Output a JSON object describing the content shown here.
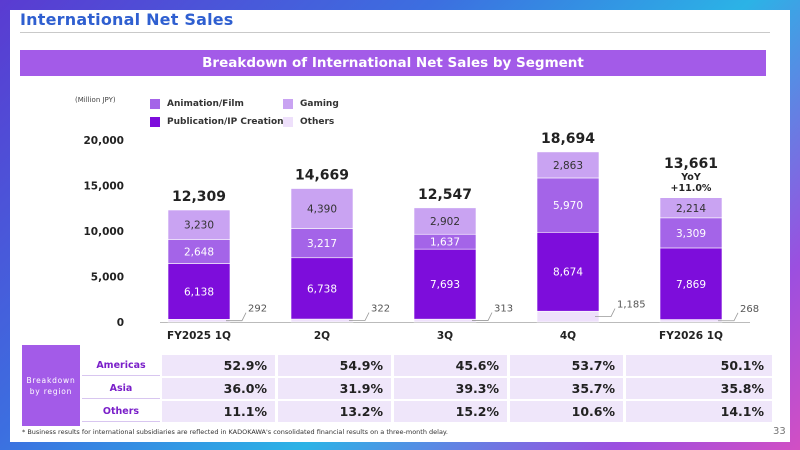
{
  "header": {
    "title": "International Net Sales",
    "banner": "Breakdown of International Net Sales by Segment"
  },
  "colors": {
    "title": "#2f5fd0",
    "banner": "#a35be8",
    "publication": "#7d0ddb",
    "animation": "#a464e8",
    "gaming": "#c9a3f2",
    "others": "#eee0fb"
  },
  "chart_data": {
    "type": "bar",
    "stacked": true,
    "unit_label": "(Million JPY)",
    "categories": [
      "FY2025 1Q",
      "2Q",
      "3Q",
      "4Q",
      "FY2026 1Q"
    ],
    "series": [
      {
        "name": "Others",
        "values": [
          292,
          322,
          313,
          1185,
          268
        ]
      },
      {
        "name": "Publication/IP Creation",
        "values": [
          6138,
          6738,
          7693,
          8674,
          7869
        ]
      },
      {
        "name": "Animation/Film",
        "values": [
          2648,
          3217,
          1637,
          5970,
          3309
        ]
      },
      {
        "name": "Gaming",
        "values": [
          3230,
          4390,
          2902,
          2863,
          2214
        ]
      }
    ],
    "totals": [
      "12,309",
      "14,669",
      "12,547",
      "18,694",
      "13,661"
    ],
    "annotation": {
      "line1": "YoY",
      "line2": "+11.0%"
    },
    "ylim": [
      0,
      20000
    ],
    "yticks": [
      "0",
      "5,000",
      "10,000",
      "15,000",
      "20,000"
    ],
    "ytick_values": [
      0,
      5000,
      10000,
      15000,
      20000
    ],
    "legend": [
      {
        "name": "Animation/Film",
        "color_key": "animation"
      },
      {
        "name": "Gaming",
        "color_key": "gaming"
      },
      {
        "name": "Publication/IP Creation",
        "color_key": "publication"
      },
      {
        "name": "Others",
        "color_key": "others"
      }
    ],
    "grid": false,
    "legend_position": "top-left"
  },
  "region_table": {
    "label_line1": "Breakdown",
    "label_line2": "by region",
    "rows": [
      {
        "name": "Americas",
        "values": [
          "52.9%",
          "54.9%",
          "45.6%",
          "53.7%",
          "50.1%"
        ]
      },
      {
        "name": "Asia",
        "values": [
          "36.0%",
          "31.9%",
          "39.3%",
          "35.7%",
          "35.8%"
        ]
      },
      {
        "name": "Others",
        "values": [
          "11.1%",
          "13.2%",
          "15.2%",
          "10.6%",
          "14.1%"
        ]
      }
    ]
  },
  "footnote": "* Business results for international subsidiaries are reflected in KADOKAWA's consolidated financial results on a three-month delay.",
  "page_number": "33"
}
